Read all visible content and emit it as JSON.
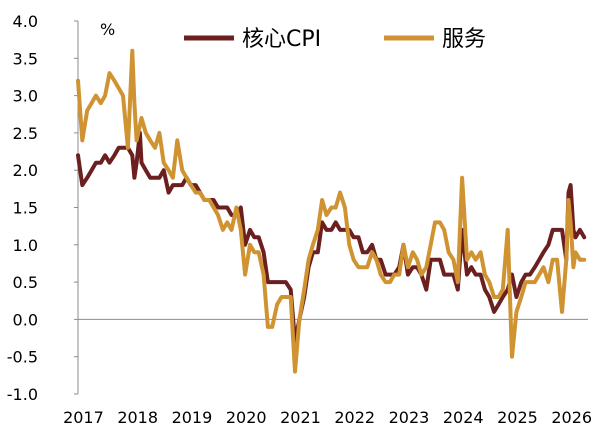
{
  "chart_data": {
    "type": "line",
    "title": "",
    "xlabel": "",
    "ylabel": "",
    "unit_label": "%",
    "xlim": [
      2017.0,
      2026.4
    ],
    "ylim": [
      -1.0,
      4.0
    ],
    "y_ticks": [
      -1.0,
      -0.5,
      0.0,
      0.5,
      1.0,
      1.5,
      2.0,
      2.5,
      3.0,
      3.5,
      4.0
    ],
    "y_tick_labels": [
      "-1.0",
      "-0.5",
      "0.0",
      "0.5",
      "1.0",
      "1.5",
      "2.0",
      "2.5",
      "3.0",
      "3.5",
      "4.0"
    ],
    "x_ticks": [
      2017,
      2018,
      2019,
      2020,
      2021,
      2022,
      2023,
      2024,
      2025,
      2026
    ],
    "x_tick_labels": [
      "2017",
      "2018",
      "2019",
      "2020",
      "2021",
      "2022",
      "2023",
      "2024",
      "2025",
      "2026"
    ],
    "grid": false,
    "legend_position": "top",
    "series": [
      {
        "name": "核心CPI",
        "color": "#6b1f1f",
        "points": [
          [
            2017.0,
            2.2
          ],
          [
            2017.08,
            1.8
          ],
          [
            2017.17,
            1.9
          ],
          [
            2017.25,
            2.0
          ],
          [
            2017.33,
            2.1
          ],
          [
            2017.42,
            2.1
          ],
          [
            2017.5,
            2.2
          ],
          [
            2017.58,
            2.1
          ],
          [
            2017.67,
            2.2
          ],
          [
            2017.75,
            2.3
          ],
          [
            2017.83,
            2.3
          ],
          [
            2017.92,
            2.3
          ],
          [
            2018.0,
            2.2
          ],
          [
            2018.04,
            1.9
          ],
          [
            2018.08,
            2.1
          ],
          [
            2018.14,
            2.5
          ],
          [
            2018.17,
            2.1
          ],
          [
            2018.25,
            2.0
          ],
          [
            2018.33,
            1.9
          ],
          [
            2018.42,
            1.9
          ],
          [
            2018.5,
            1.9
          ],
          [
            2018.58,
            2.0
          ],
          [
            2018.67,
            1.7
          ],
          [
            2018.75,
            1.8
          ],
          [
            2018.83,
            1.8
          ],
          [
            2018.92,
            1.8
          ],
          [
            2019.0,
            1.9
          ],
          [
            2019.08,
            1.8
          ],
          [
            2019.17,
            1.8
          ],
          [
            2019.25,
            1.7
          ],
          [
            2019.33,
            1.6
          ],
          [
            2019.42,
            1.6
          ],
          [
            2019.5,
            1.6
          ],
          [
            2019.58,
            1.5
          ],
          [
            2019.67,
            1.5
          ],
          [
            2019.75,
            1.5
          ],
          [
            2019.83,
            1.4
          ],
          [
            2019.92,
            1.4
          ],
          [
            2020.0,
            1.5
          ],
          [
            2020.08,
            1.0
          ],
          [
            2020.17,
            1.2
          ],
          [
            2020.25,
            1.1
          ],
          [
            2020.33,
            1.1
          ],
          [
            2020.42,
            0.9
          ],
          [
            2020.5,
            0.5
          ],
          [
            2020.58,
            0.5
          ],
          [
            2020.67,
            0.5
          ],
          [
            2020.75,
            0.5
          ],
          [
            2020.83,
            0.5
          ],
          [
            2020.92,
            0.4
          ],
          [
            2021.0,
            -0.3
          ],
          [
            2021.08,
            0.0
          ],
          [
            2021.17,
            0.3
          ],
          [
            2021.25,
            0.7
          ],
          [
            2021.33,
            0.9
          ],
          [
            2021.42,
            0.9
          ],
          [
            2021.5,
            1.3
          ],
          [
            2021.58,
            1.2
          ],
          [
            2021.67,
            1.2
          ],
          [
            2021.75,
            1.3
          ],
          [
            2021.83,
            1.2
          ],
          [
            2021.92,
            1.2
          ],
          [
            2022.0,
            1.2
          ],
          [
            2022.08,
            1.1
          ],
          [
            2022.17,
            1.1
          ],
          [
            2022.25,
            0.9
          ],
          [
            2022.33,
            0.9
          ],
          [
            2022.42,
            1.0
          ],
          [
            2022.5,
            0.8
          ],
          [
            2022.58,
            0.8
          ],
          [
            2022.67,
            0.6
          ],
          [
            2022.75,
            0.6
          ],
          [
            2022.83,
            0.6
          ],
          [
            2022.92,
            0.7
          ],
          [
            2023.0,
            1.0
          ],
          [
            2023.08,
            0.6
          ],
          [
            2023.17,
            0.7
          ],
          [
            2023.25,
            0.7
          ],
          [
            2023.33,
            0.6
          ],
          [
            2023.42,
            0.4
          ],
          [
            2023.5,
            0.8
          ],
          [
            2023.58,
            0.8
          ],
          [
            2023.67,
            0.8
          ],
          [
            2023.75,
            0.6
          ],
          [
            2023.83,
            0.6
          ],
          [
            2023.92,
            0.6
          ],
          [
            2024.0,
            0.4
          ],
          [
            2024.08,
            1.2
          ],
          [
            2024.17,
            0.6
          ],
          [
            2024.25,
            0.7
          ],
          [
            2024.33,
            0.6
          ],
          [
            2024.42,
            0.6
          ],
          [
            2024.5,
            0.4
          ],
          [
            2024.58,
            0.3
          ],
          [
            2024.67,
            0.1
          ],
          [
            2024.75,
            0.2
          ],
          [
            2024.83,
            0.3
          ],
          [
            2024.92,
            0.4
          ],
          [
            2025.0,
            0.6
          ],
          [
            2025.08,
            0.3
          ],
          [
            2025.17,
            0.5
          ],
          [
            2025.25,
            0.6
          ],
          [
            2025.33,
            0.6
          ],
          [
            2025.42,
            0.7
          ],
          [
            2025.5,
            0.8
          ],
          [
            2025.58,
            0.9
          ],
          [
            2025.67,
            1.0
          ],
          [
            2025.75,
            1.2
          ],
          [
            2025.83,
            1.2
          ],
          [
            2025.92,
            1.2
          ],
          [
            2026.0,
            0.8
          ],
          [
            2026.04,
            1.7
          ],
          [
            2026.08,
            1.8
          ],
          [
            2026.13,
            1.2
          ],
          [
            2026.17,
            1.1
          ],
          [
            2026.25,
            1.2
          ],
          [
            2026.33,
            1.1
          ]
        ]
      },
      {
        "name": "服务",
        "color": "#d09332",
        "points": [
          [
            2017.0,
            3.2
          ],
          [
            2017.08,
            2.4
          ],
          [
            2017.17,
            2.8
          ],
          [
            2017.25,
            2.9
          ],
          [
            2017.33,
            3.0
          ],
          [
            2017.42,
            2.9
          ],
          [
            2017.5,
            3.0
          ],
          [
            2017.58,
            3.3
          ],
          [
            2017.67,
            3.2
          ],
          [
            2017.75,
            3.1
          ],
          [
            2017.83,
            3.0
          ],
          [
            2017.92,
            2.3
          ],
          [
            2018.0,
            3.6
          ],
          [
            2018.04,
            2.9
          ],
          [
            2018.08,
            2.4
          ],
          [
            2018.17,
            2.7
          ],
          [
            2018.25,
            2.5
          ],
          [
            2018.33,
            2.4
          ],
          [
            2018.42,
            2.3
          ],
          [
            2018.5,
            2.5
          ],
          [
            2018.58,
            2.1
          ],
          [
            2018.67,
            2.0
          ],
          [
            2018.75,
            1.9
          ],
          [
            2018.83,
            2.4
          ],
          [
            2018.92,
            2.0
          ],
          [
            2019.0,
            1.9
          ],
          [
            2019.08,
            1.8
          ],
          [
            2019.17,
            1.7
          ],
          [
            2019.25,
            1.7
          ],
          [
            2019.33,
            1.6
          ],
          [
            2019.42,
            1.6
          ],
          [
            2019.5,
            1.5
          ],
          [
            2019.58,
            1.4
          ],
          [
            2019.67,
            1.2
          ],
          [
            2019.75,
            1.3
          ],
          [
            2019.83,
            1.2
          ],
          [
            2019.92,
            1.5
          ],
          [
            2020.0,
            1.2
          ],
          [
            2020.08,
            0.6
          ],
          [
            2020.17,
            1.0
          ],
          [
            2020.25,
            0.9
          ],
          [
            2020.33,
            0.9
          ],
          [
            2020.42,
            0.6
          ],
          [
            2020.5,
            -0.1
          ],
          [
            2020.58,
            -0.1
          ],
          [
            2020.67,
            0.2
          ],
          [
            2020.75,
            0.3
          ],
          [
            2020.83,
            0.3
          ],
          [
            2020.92,
            0.3
          ],
          [
            2021.0,
            -0.7
          ],
          [
            2021.08,
            0.0
          ],
          [
            2021.17,
            0.4
          ],
          [
            2021.25,
            0.8
          ],
          [
            2021.33,
            1.0
          ],
          [
            2021.42,
            1.2
          ],
          [
            2021.5,
            1.6
          ],
          [
            2021.58,
            1.4
          ],
          [
            2021.67,
            1.5
          ],
          [
            2021.75,
            1.5
          ],
          [
            2021.83,
            1.7
          ],
          [
            2021.92,
            1.5
          ],
          [
            2022.0,
            1.0
          ],
          [
            2022.08,
            0.8
          ],
          [
            2022.17,
            0.7
          ],
          [
            2022.25,
            0.7
          ],
          [
            2022.33,
            0.7
          ],
          [
            2022.42,
            0.9
          ],
          [
            2022.5,
            0.8
          ],
          [
            2022.58,
            0.6
          ],
          [
            2022.67,
            0.5
          ],
          [
            2022.75,
            0.5
          ],
          [
            2022.83,
            0.6
          ],
          [
            2022.92,
            0.6
          ],
          [
            2023.0,
            1.0
          ],
          [
            2023.08,
            0.7
          ],
          [
            2023.17,
            0.9
          ],
          [
            2023.25,
            0.8
          ],
          [
            2023.33,
            0.6
          ],
          [
            2023.42,
            0.7
          ],
          [
            2023.5,
            1.0
          ],
          [
            2023.58,
            1.3
          ],
          [
            2023.67,
            1.3
          ],
          [
            2023.75,
            1.2
          ],
          [
            2023.83,
            0.9
          ],
          [
            2023.92,
            0.8
          ],
          [
            2024.0,
            0.5
          ],
          [
            2024.08,
            1.9
          ],
          [
            2024.17,
            0.8
          ],
          [
            2024.25,
            0.9
          ],
          [
            2024.33,
            0.8
          ],
          [
            2024.42,
            0.9
          ],
          [
            2024.5,
            0.6
          ],
          [
            2024.58,
            0.5
          ],
          [
            2024.67,
            0.3
          ],
          [
            2024.75,
            0.3
          ],
          [
            2024.83,
            0.4
          ],
          [
            2024.92,
            1.2
          ],
          [
            2025.0,
            -0.5
          ],
          [
            2025.08,
            0.1
          ],
          [
            2025.17,
            0.3
          ],
          [
            2025.25,
            0.5
          ],
          [
            2025.33,
            0.5
          ],
          [
            2025.42,
            0.5
          ],
          [
            2025.5,
            0.6
          ],
          [
            2025.58,
            0.7
          ],
          [
            2025.67,
            0.5
          ],
          [
            2025.75,
            0.8
          ],
          [
            2025.83,
            0.8
          ],
          [
            2025.92,
            0.1
          ],
          [
            2026.0,
            0.8
          ],
          [
            2026.04,
            1.6
          ],
          [
            2026.08,
            1.3
          ],
          [
            2026.13,
            0.7
          ],
          [
            2026.17,
            0.9
          ],
          [
            2026.25,
            0.8
          ],
          [
            2026.33,
            0.8
          ]
        ]
      }
    ]
  }
}
